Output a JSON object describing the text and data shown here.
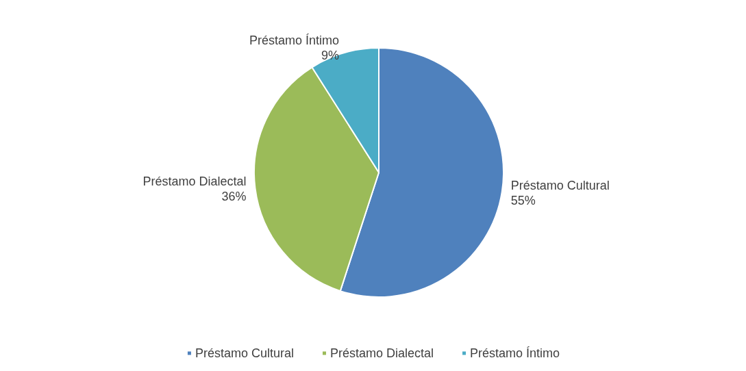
{
  "chart_data": {
    "type": "pie",
    "categories": [
      "Préstamo Cultural",
      "Préstamo Dialectal",
      "Préstamo Íntimo"
    ],
    "values": [
      55,
      36,
      9
    ],
    "value_labels": [
      "55%",
      "36%",
      "9%"
    ],
    "colors": [
      "#4f81bd",
      "#9bbb59",
      "#4bacc6"
    ],
    "legend": "bottom"
  }
}
